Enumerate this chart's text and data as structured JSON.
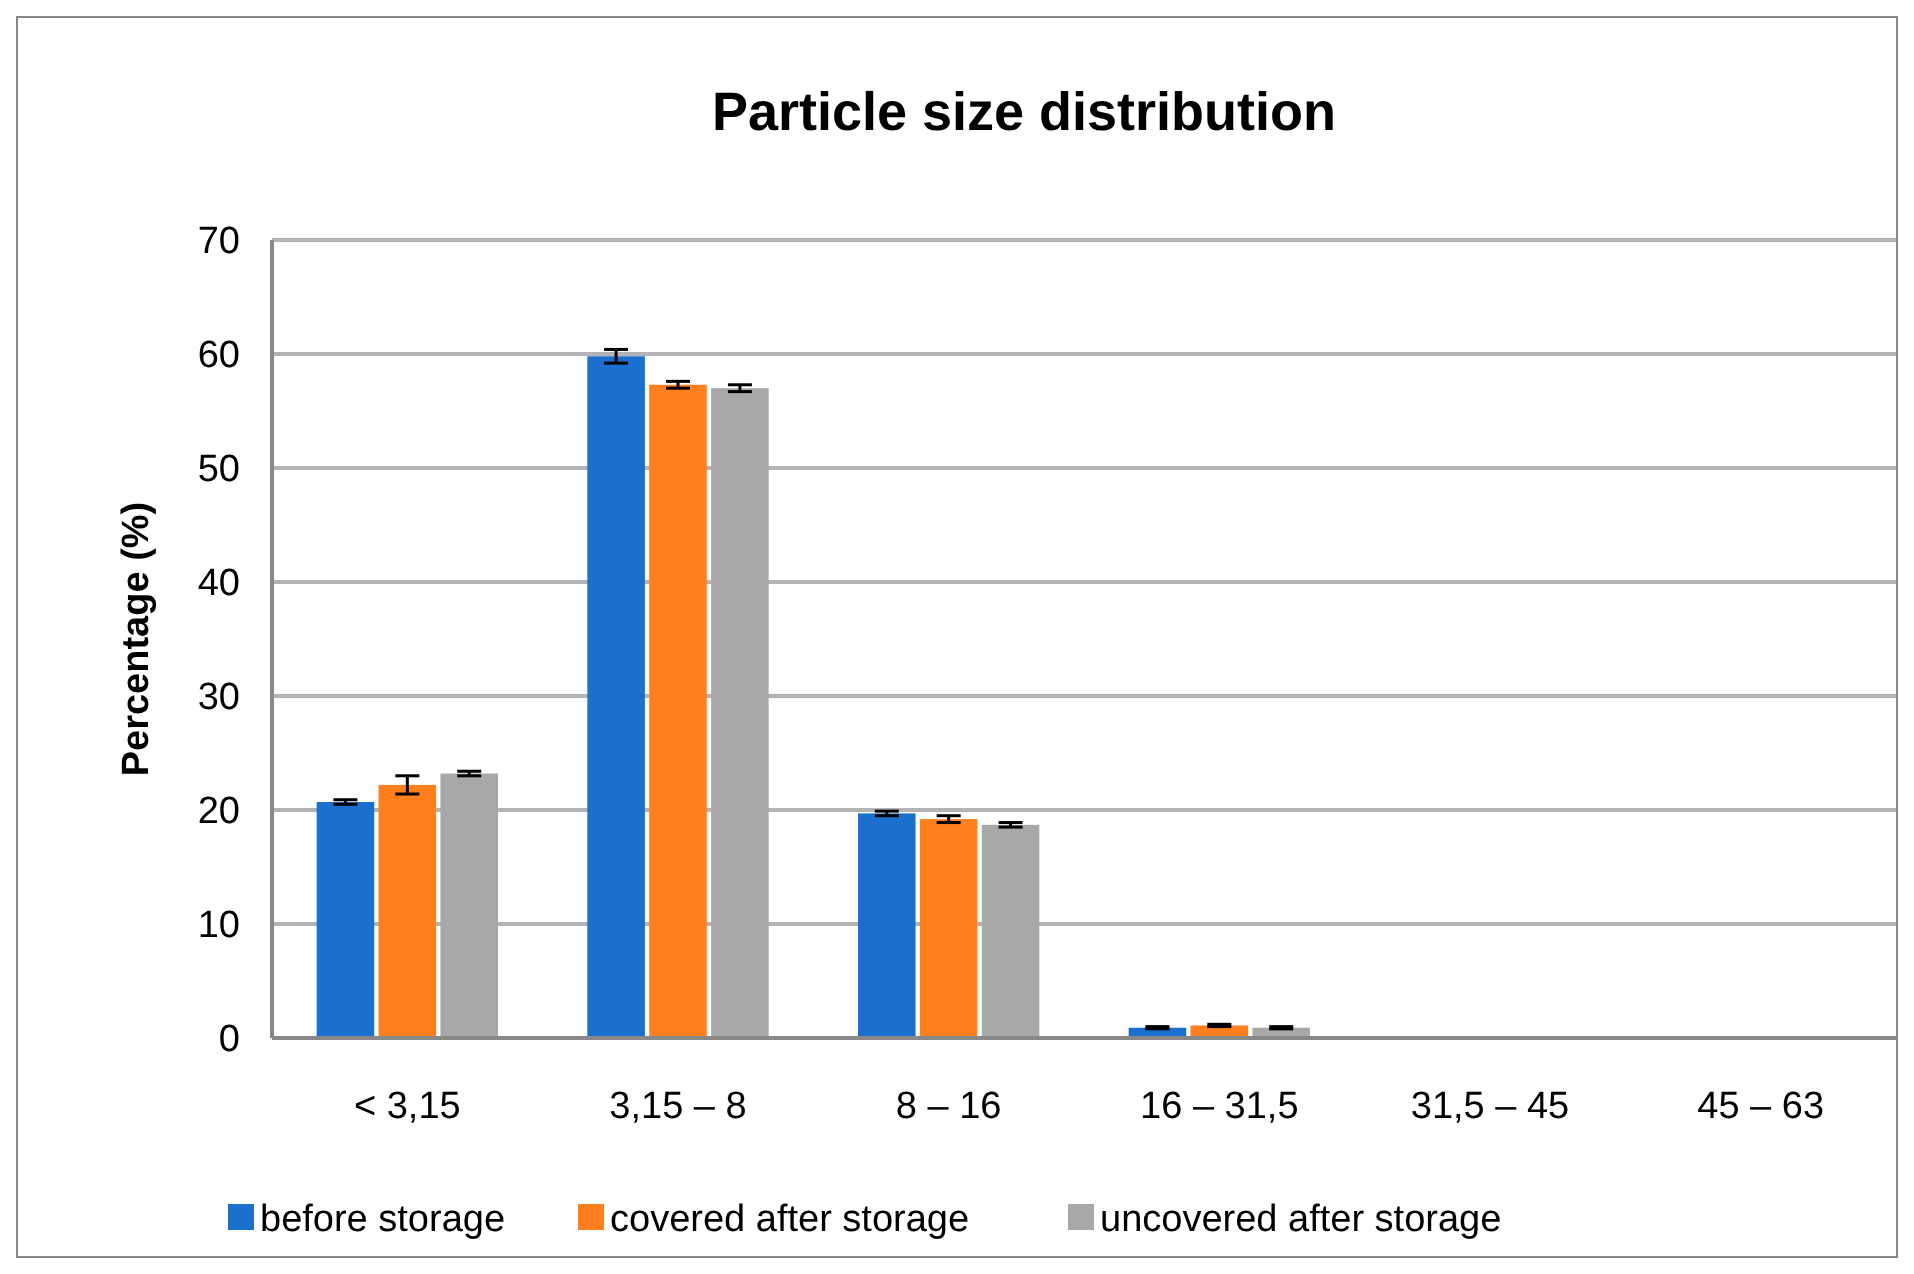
{
  "chart_data": {
    "type": "bar",
    "title": "Particle size distribution",
    "ylabel": "Percentage (%)",
    "categories": [
      "< 3,15",
      "3,15 – 8",
      "8 – 16",
      "16 – 31,5",
      "31,5 – 45",
      "45 – 63"
    ],
    "series": [
      {
        "name": "before storage",
        "color": "#1a70cc",
        "values": [
          20.7,
          59.8,
          19.7,
          0.9,
          0,
          0
        ],
        "errors": [
          0.2,
          0.6,
          0.2,
          0.1,
          null,
          null
        ]
      },
      {
        "name": "covered after storage",
        "color": "#ff7f1f",
        "values": [
          22.2,
          57.3,
          19.2,
          1.1,
          0,
          0
        ],
        "errors": [
          0.8,
          0.3,
          0.3,
          0.1,
          null,
          null
        ]
      },
      {
        "name": "uncovered after storage",
        "color": "#a8a8a8",
        "values": [
          23.2,
          57.0,
          18.7,
          0.9,
          0,
          0
        ],
        "errors": [
          0.2,
          0.3,
          0.2,
          0.1,
          null,
          null
        ]
      }
    ],
    "ylim": [
      0,
      70
    ],
    "yticks": [
      0,
      10,
      20,
      30,
      40,
      50,
      60,
      70
    ],
    "grid": "y",
    "legend": "bottom"
  }
}
